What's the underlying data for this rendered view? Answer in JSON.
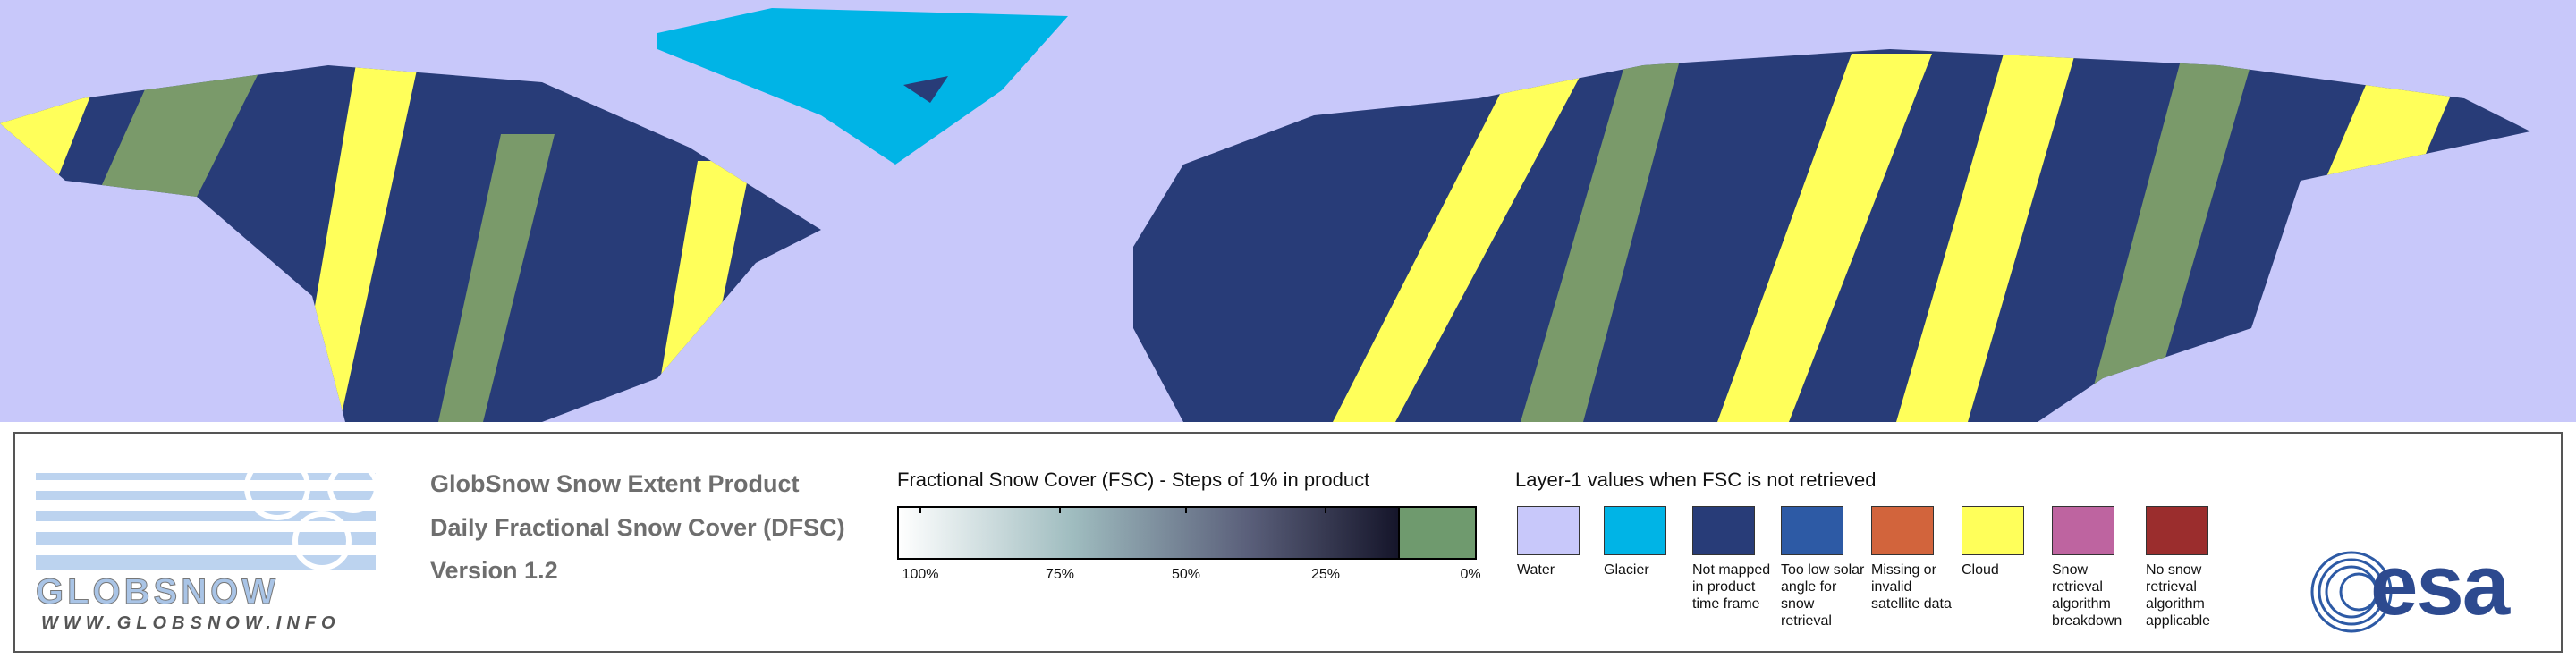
{
  "logo": {
    "name": "GLOBSNOW",
    "url": "WWW.GLOBSNOW.INFO"
  },
  "product": {
    "lines": [
      "GlobSnow Snow Extent Product",
      "Daily Fractional Snow Cover (DFSC)",
      "Version 1.2"
    ]
  },
  "fsc_legend": {
    "title": "Fractional Snow Cover (FSC) - Steps of 1% in product",
    "ticks": [
      "100%",
      "75%",
      "50%",
      "25%",
      "0%"
    ]
  },
  "layer1_legend": {
    "title": "Layer-1 values when FSC is not retrieved",
    "items": [
      {
        "label": "Water",
        "color": "#c8c8fa"
      },
      {
        "label": "Glacier",
        "color": "#00b4e6"
      },
      {
        "label": "Not mapped in product time frame",
        "color": "#283c78"
      },
      {
        "label": "Too low solar angle for snow retrieval",
        "color": "#2d5aa5"
      },
      {
        "label": "Missing or invalid satellite data",
        "color": "#d2643c"
      },
      {
        "label": "Cloud",
        "color": "#ffff5a"
      },
      {
        "label": "Snow retrieval algorithm breakdown",
        "color": "#be64a0"
      },
      {
        "label": "No snow retrieval algorithm applicable",
        "color": "#9b2d2d"
      }
    ]
  },
  "agency": {
    "name": "esa"
  }
}
